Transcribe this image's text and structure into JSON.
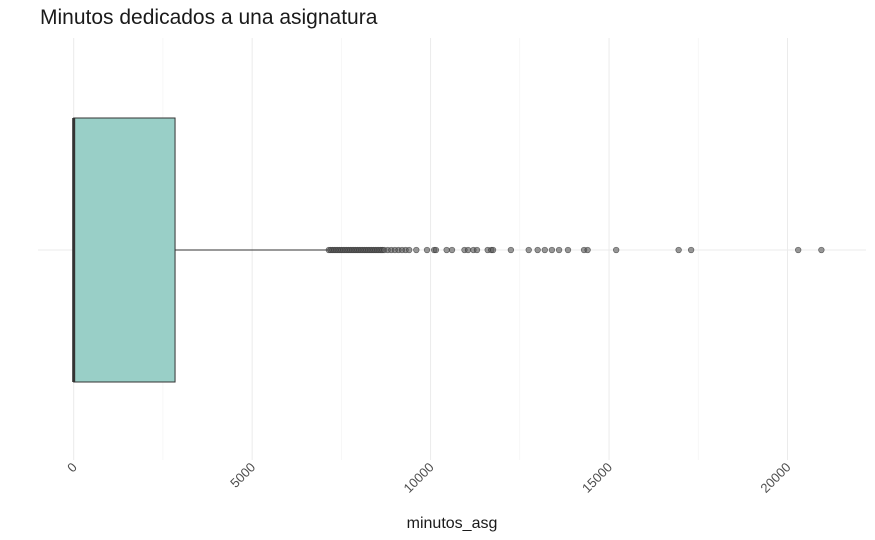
{
  "chart_data": {
    "type": "boxplot",
    "title": "Minutos dedicados a una asignatura",
    "xlabel": "minutos_asg",
    "ylabel": "",
    "xlim": [
      -1000,
      22200
    ],
    "x_ticks": [
      0,
      5000,
      10000,
      15000,
      20000
    ],
    "x_tick_labels": [
      "0",
      "5000",
      "10000",
      "15000",
      "20000"
    ],
    "grid": true,
    "box": {
      "min": 0,
      "q1": 0,
      "median": 0,
      "q3": 2840,
      "whisker_high": 7140,
      "fill_color": "#99cfc7"
    },
    "outliers": [
      7150,
      7200,
      7250,
      7300,
      7350,
      7400,
      7450,
      7500,
      7550,
      7600,
      7650,
      7700,
      7750,
      7800,
      7850,
      7900,
      7950,
      8000,
      8050,
      8100,
      8150,
      8200,
      8250,
      8300,
      8350,
      8400,
      8450,
      8500,
      8550,
      8600,
      8650,
      8700,
      8800,
      8900,
      9000,
      9100,
      9200,
      9300,
      9400,
      9600,
      9900,
      10100,
      10150,
      10450,
      10600,
      10950,
      11050,
      11200,
      11300,
      11600,
      11700,
      11750,
      12250,
      12750,
      13000,
      13200,
      13400,
      13600,
      13850,
      14300,
      14400,
      15200,
      16950,
      17300,
      20300,
      20950
    ],
    "outlier_color": "#555555"
  }
}
